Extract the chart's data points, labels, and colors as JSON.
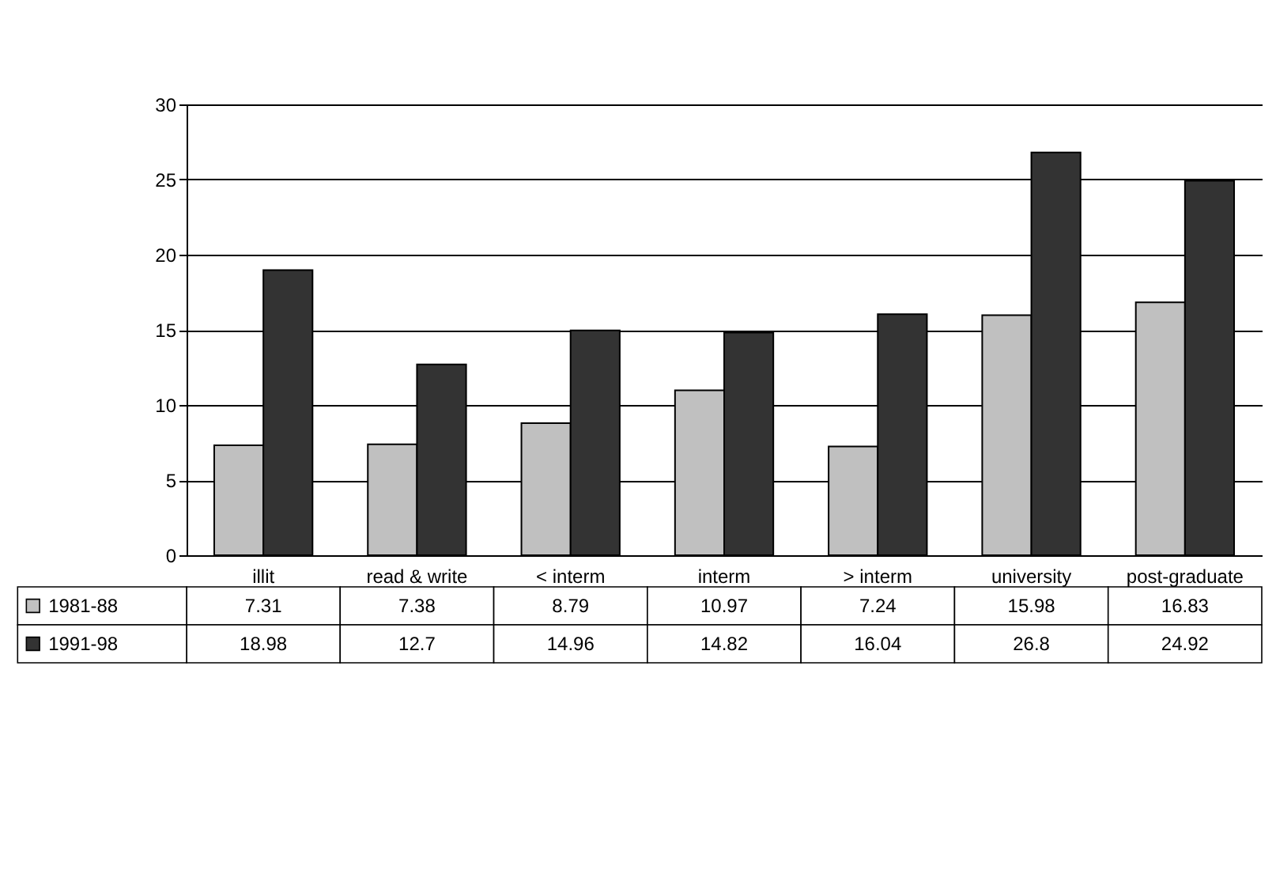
{
  "chart_data": {
    "type": "bar",
    "categories": [
      "illit",
      "read & write",
      "< interm",
      "interm",
      "> interm",
      "university",
      "post-graduate"
    ],
    "series": [
      {
        "name": "1981-88",
        "color": "#c0c0c0",
        "values": [
          7.31,
          7.38,
          8.79,
          10.97,
          7.24,
          15.98,
          16.83
        ]
      },
      {
        "name": "1991-98",
        "color": "#333333",
        "values": [
          18.98,
          12.7,
          14.96,
          14.82,
          16.04,
          26.8,
          24.92
        ]
      }
    ],
    "ylim": [
      0,
      30
    ],
    "yticks": [
      0,
      5,
      10,
      15,
      20,
      25,
      30
    ],
    "grid": "y",
    "data_labels": true,
    "legend": "bottom left"
  }
}
